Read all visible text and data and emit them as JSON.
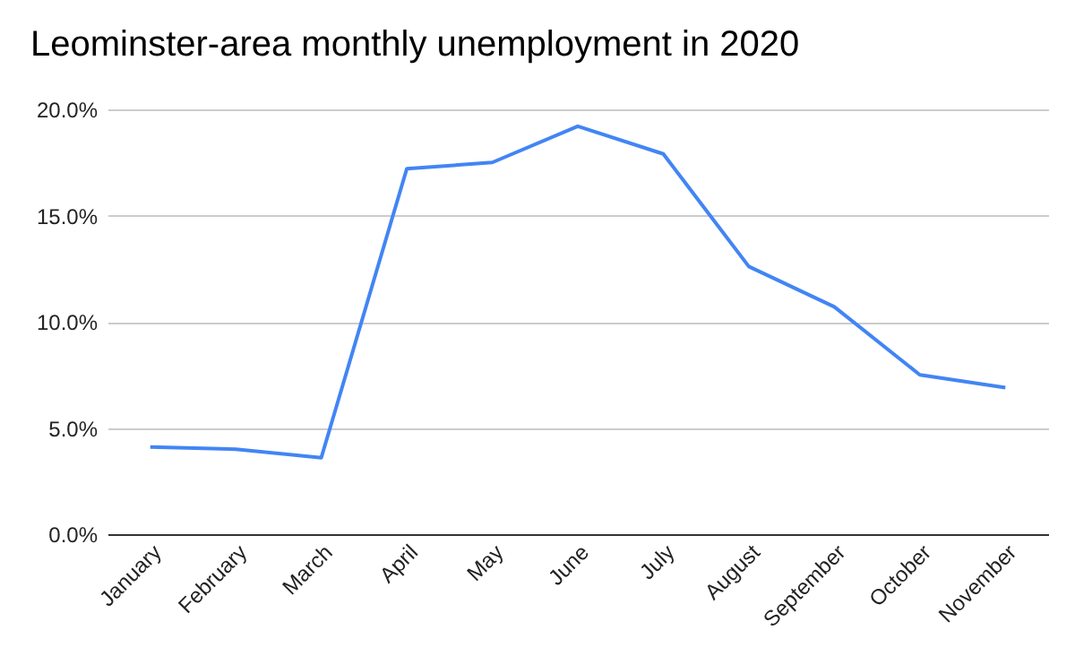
{
  "chart_data": {
    "type": "line",
    "title": "Leominster-area monthly unemployment in 2020",
    "categories": [
      "January",
      "February",
      "March",
      "April",
      "May",
      "June",
      "July",
      "August",
      "September",
      "October",
      "November"
    ],
    "series": [
      {
        "color": "#4285f4",
        "values": [
          4.1,
          4.0,
          3.6,
          17.2,
          17.5,
          19.2,
          17.9,
          12.6,
          10.7,
          7.5,
          6.9
        ]
      }
    ],
    "ylim": [
      0,
      20
    ],
    "yticks": [
      {
        "value": 0,
        "label": "0.0%"
      },
      {
        "value": 5,
        "label": "5.0%"
      },
      {
        "value": 10,
        "label": "10.0%"
      },
      {
        "value": 15,
        "label": "15.0%"
      },
      {
        "value": 20,
        "label": "20.0%"
      }
    ],
    "grid": "y",
    "legend": false,
    "marker": "none",
    "line_style": "solid"
  }
}
